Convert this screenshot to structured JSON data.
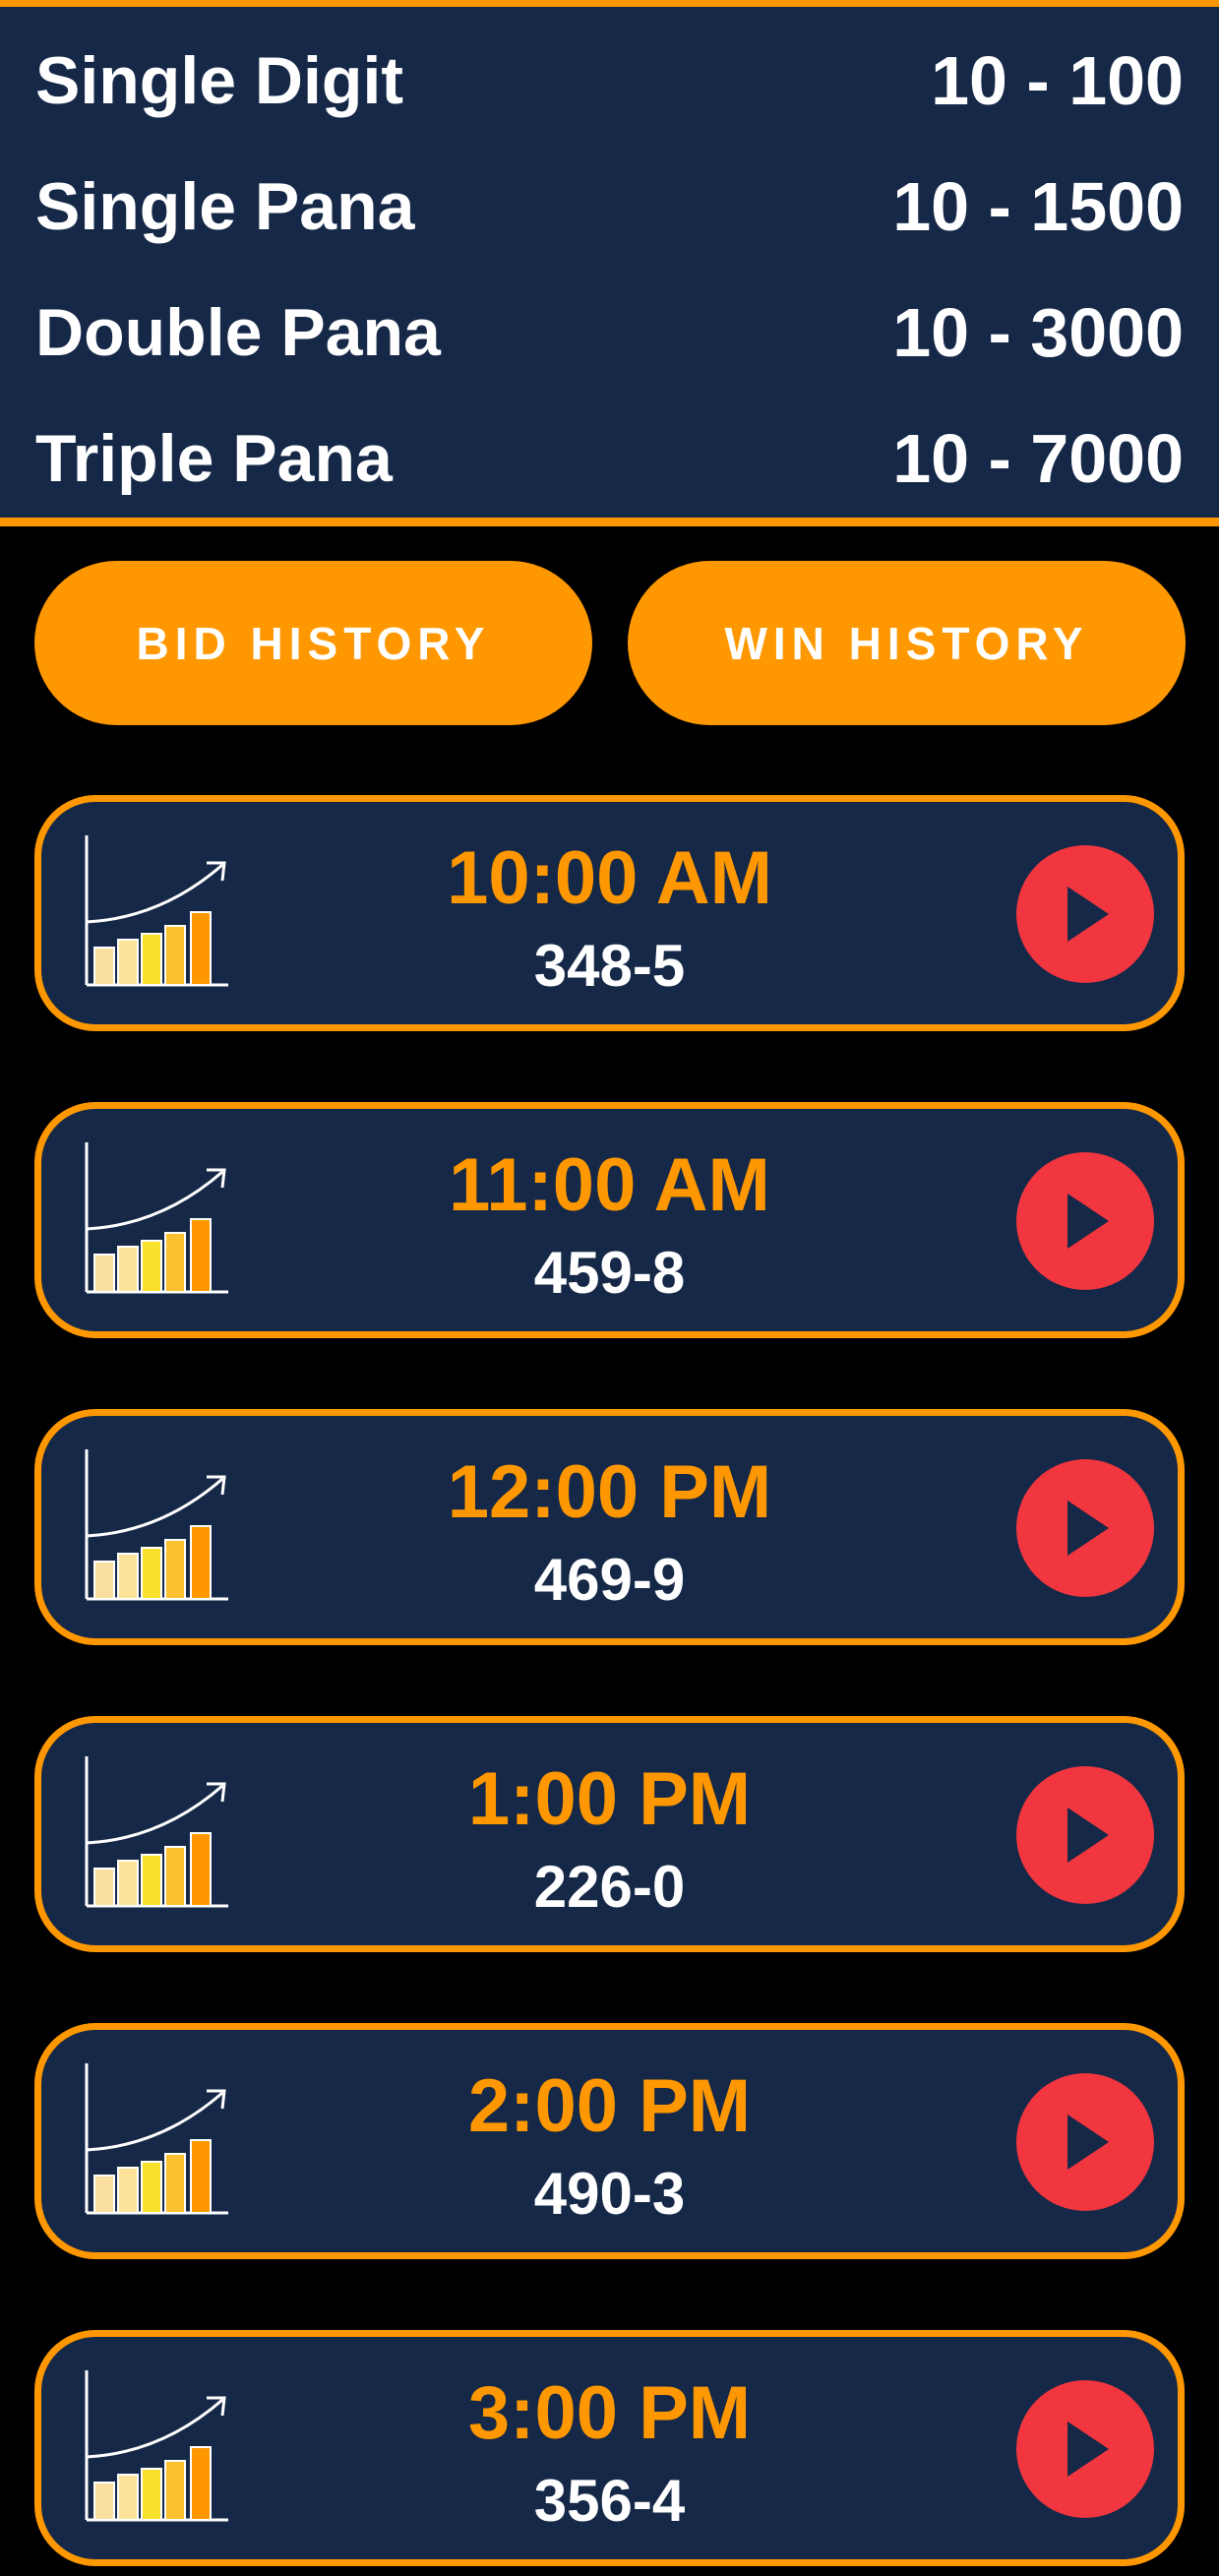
{
  "rates": [
    {
      "name": "Single Digit",
      "range": "10 - 100"
    },
    {
      "name": "Single Pana",
      "range": "10 - 1500"
    },
    {
      "name": "Double Pana",
      "range": "10 - 3000"
    },
    {
      "name": "Triple Pana",
      "range": "10 - 7000"
    }
  ],
  "buttons": {
    "bid_history": "BID HISTORY",
    "win_history": "WIN HISTORY"
  },
  "games": [
    {
      "time": "10:00 AM",
      "result": "348-5"
    },
    {
      "time": "11:00 AM",
      "result": "459-8"
    },
    {
      "time": "12:00 PM",
      "result": "469-9"
    },
    {
      "time": "1:00 PM",
      "result": "226-0"
    },
    {
      "time": "2:00 PM",
      "result": "490-3"
    },
    {
      "time": "3:00 PM",
      "result": "356-4"
    }
  ],
  "icons": {
    "card_icon": "bar-chart-growth-icon",
    "play_icon": "play-icon"
  },
  "colors": {
    "accent": "#ff9800",
    "panel": "#162847",
    "play": "#f2363f",
    "background": "#000000"
  }
}
